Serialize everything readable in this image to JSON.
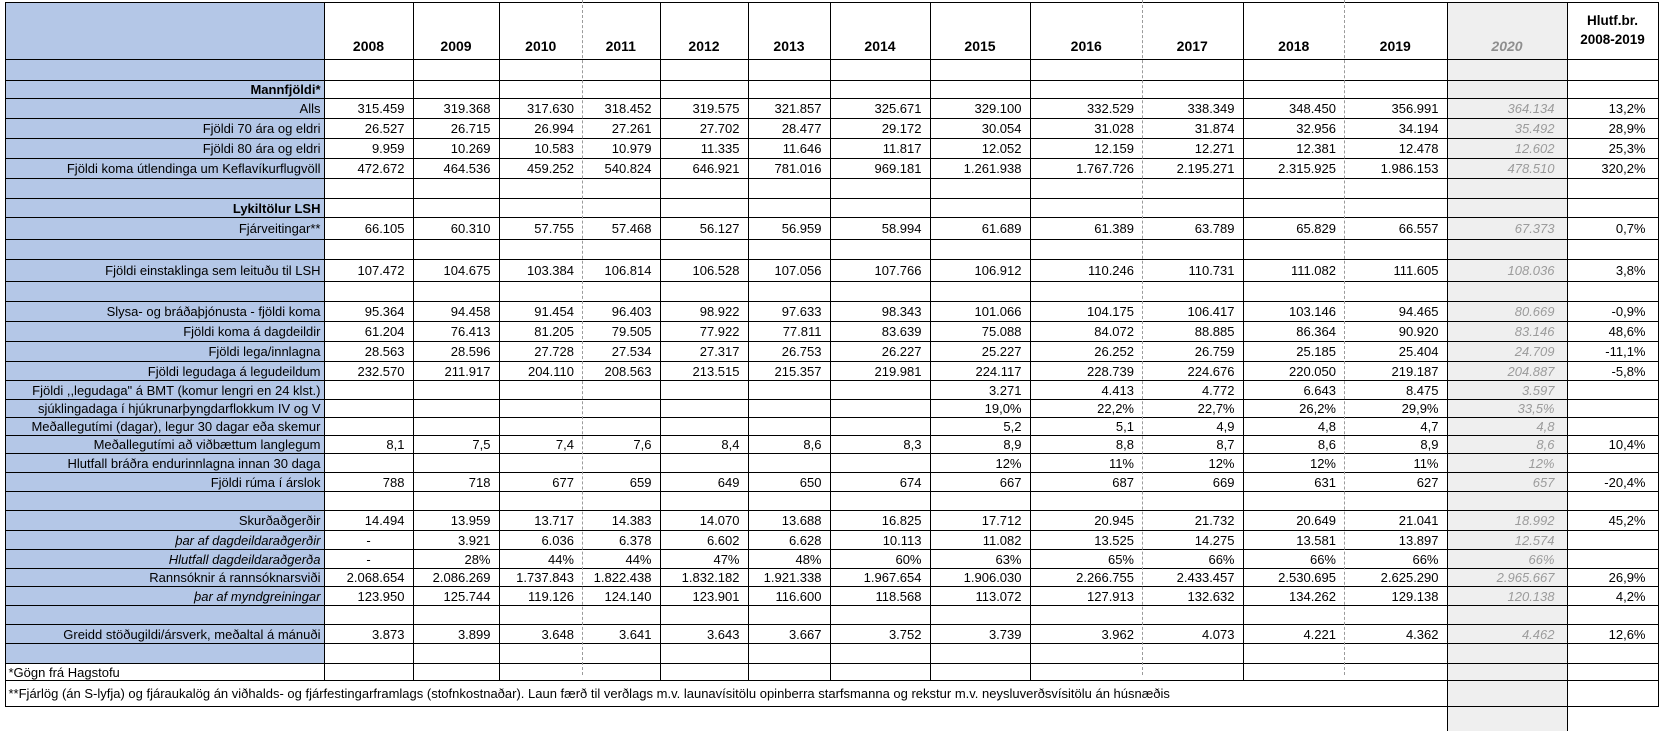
{
  "columns": {
    "years": [
      "2008",
      "2009",
      "2010",
      "2011",
      "2012",
      "2013",
      "2014",
      "2015",
      "2016",
      "2017",
      "2018",
      "2019"
    ],
    "year_2020": "2020",
    "hlutf_line1": "Hlutf.br.",
    "hlutf_line2": "2008-2019"
  },
  "rows": [
    {
      "kind": "blank",
      "name": "spacer-1"
    },
    {
      "kind": "section",
      "name": "mannfjoldi-section",
      "label": "Mannfjöldi*"
    },
    {
      "kind": "data",
      "name": "alls",
      "label": "Alls",
      "values": [
        "315.459",
        "319.368",
        "317.630",
        "318.452",
        "319.575",
        "321.857",
        "325.671",
        "329.100",
        "332.529",
        "338.349",
        "348.450",
        "356.991"
      ],
      "v2020": "364.134",
      "hlutf": "13,2%"
    },
    {
      "kind": "data",
      "name": "fjoldi-70-ara-og-eldri",
      "label": "Fjöldi 70 ára og eldri",
      "values": [
        "26.527",
        "26.715",
        "26.994",
        "27.261",
        "27.702",
        "28.477",
        "29.172",
        "30.054",
        "31.028",
        "31.874",
        "32.956",
        "34.194"
      ],
      "v2020": "35.492",
      "hlutf": "28,9%"
    },
    {
      "kind": "data",
      "name": "fjoldi-80-ara-og-eldri",
      "label": "Fjöldi 80 ára og eldri",
      "values": [
        "9.959",
        "10.269",
        "10.583",
        "10.979",
        "11.335",
        "11.646",
        "11.817",
        "12.052",
        "12.159",
        "12.271",
        "12.381",
        "12.478"
      ],
      "v2020": "12.602",
      "hlutf": "25,3%"
    },
    {
      "kind": "data",
      "name": "komur-utlendinga-keflavik",
      "label": "Fjöldi koma útlendinga  um  Keflavíkurflugvöll",
      "values": [
        "472.672",
        "464.536",
        "459.252",
        "540.824",
        "646.921",
        "781.016",
        "969.181",
        "1.261.938",
        "1.767.726",
        "2.195.271",
        "2.315.925",
        "1.986.153"
      ],
      "v2020": "478.510",
      "hlutf": "320,2%"
    },
    {
      "kind": "blank",
      "name": "spacer-2"
    },
    {
      "kind": "section",
      "name": "lykiltolur-section",
      "label": "Lykiltölur LSH"
    },
    {
      "kind": "data",
      "name": "fjarveitingar",
      "label": "Fjárveitingar**",
      "values": [
        "66.105",
        "60.310",
        "57.755",
        "57.468",
        "56.127",
        "56.959",
        "58.994",
        "61.689",
        "61.389",
        "63.789",
        "65.829",
        "66.557"
      ],
      "v2020": "67.373",
      "hlutf": "0,7%"
    },
    {
      "kind": "blank",
      "name": "spacer-3"
    },
    {
      "kind": "data",
      "name": "fjoldi-einstaklinga-leitudu",
      "label": "Fjöldi einstaklinga sem leituðu til LSH",
      "values": [
        "107.472",
        "104.675",
        "103.384",
        "106.814",
        "106.528",
        "107.056",
        "107.766",
        "106.912",
        "110.246",
        "110.731",
        "111.082",
        "111.605"
      ],
      "v2020": "108.036",
      "hlutf": "3,8%"
    },
    {
      "kind": "blank",
      "name": "spacer-4"
    },
    {
      "kind": "data",
      "name": "slysa-bradathjonusta-komur",
      "label": "Slysa- og bráðaþjónusta - fjöldi koma",
      "values": [
        "95.364",
        "94.458",
        "91.454",
        "96.403",
        "98.922",
        "97.633",
        "98.343",
        "101.066",
        "104.175",
        "106.417",
        "103.146",
        "94.465"
      ],
      "v2020": "80.669",
      "hlutf": "-0,9%"
    },
    {
      "kind": "data",
      "name": "fjoldi-koma-dagdeildir",
      "label": "Fjöldi koma á dagdeildir",
      "values": [
        "61.204",
        "76.413",
        "81.205",
        "79.505",
        "77.922",
        "77.811",
        "83.639",
        "75.088",
        "84.072",
        "88.885",
        "86.364",
        "90.920"
      ],
      "v2020": "83.146",
      "hlutf": "48,6%"
    },
    {
      "kind": "data",
      "name": "fjoldi-lega-innlagna",
      "label": "Fjöldi lega/innlagna",
      "values": [
        "28.563",
        "28.596",
        "27.728",
        "27.534",
        "27.317",
        "26.753",
        "26.227",
        "25.227",
        "26.252",
        "26.759",
        "25.185",
        "25.404"
      ],
      "v2020": "24.709",
      "hlutf": "-11,1%"
    },
    {
      "kind": "data",
      "name": "fjoldi-legudaga-legudeildum",
      "label": "Fjöldi legudaga á legudeildum",
      "values": [
        "232.570",
        "211.917",
        "204.110",
        "208.563",
        "213.515",
        "215.357",
        "219.981",
        "224.117",
        "228.739",
        "224.676",
        "220.050",
        "219.187"
      ],
      "v2020": "204.887",
      "hlutf": "-5,8%"
    },
    {
      "kind": "data",
      "name": "fjoldi-legudaga-bmt",
      "label": "Fjöldi ,,legudaga\" á BMT (komur lengri en 24 klst.)",
      "values": [
        "",
        "",
        "",
        "",
        "",
        "",
        "",
        "3.271",
        "4.413",
        "4.772",
        "6.643",
        "8.475"
      ],
      "v2020": "3.597",
      "hlutf": ""
    },
    {
      "kind": "data",
      "name": "sjuklingadagar-hjukrunarthyngd",
      "label": "sjúklingadaga í hjúkrunarþyngdarflokkum IV og V",
      "values": [
        "",
        "",
        "",
        "",
        "",
        "",
        "",
        "19,0%",
        "22,2%",
        "22,7%",
        "26,2%",
        "29,9%"
      ],
      "v2020": "33,5%",
      "hlutf": ""
    },
    {
      "kind": "data",
      "name": "medallegutimi-30-dagar",
      "label": "Meðallegutími (dagar), legur 30 dagar eða skemur",
      "values": [
        "",
        "",
        "",
        "",
        "",
        "",
        "",
        "5,2",
        "5,1",
        "4,9",
        "4,8",
        "4,7"
      ],
      "v2020": "4,8",
      "hlutf": ""
    },
    {
      "kind": "data",
      "name": "medallegutimi-vidbaettum-langlegum",
      "label": "Meðallegutími að viðbættum  langlegum",
      "values": [
        "8,1",
        "7,5",
        "7,4",
        "7,6",
        "8,4",
        "8,6",
        "8,3",
        "8,9",
        "8,8",
        "8,7",
        "8,6",
        "8,9"
      ],
      "v2020": "8,6",
      "hlutf": "10,4%"
    },
    {
      "kind": "data",
      "name": "hlutfall-bradra-endurinnlagna",
      "label": "Hlutfall  bráðra endurinnlagna innan 30 daga",
      "values": [
        "",
        "",
        "",
        "",
        "",
        "",
        "",
        "12%",
        "11%",
        "12%",
        "12%",
        "11%"
      ],
      "v2020": "12%",
      "hlutf": ""
    },
    {
      "kind": "data",
      "name": "fjoldi-ruma-arslok",
      "label": "Fjöldi rúma í árslok",
      "values": [
        "788",
        "718",
        "677",
        "659",
        "649",
        "650",
        "674",
        "667",
        "687",
        "669",
        "631",
        "627"
      ],
      "v2020": "657",
      "hlutf": "-20,4%"
    },
    {
      "kind": "blank",
      "name": "spacer-5"
    },
    {
      "kind": "data",
      "name": "skurdadgerdir",
      "label": "Skurðaðgerðir",
      "values": [
        "14.494",
        "13.959",
        "13.717",
        "14.383",
        "14.070",
        "13.688",
        "16.825",
        "17.712",
        "20.945",
        "21.732",
        "20.649",
        "21.041"
      ],
      "v2020": "18.992",
      "hlutf": "45,2%"
    },
    {
      "kind": "data",
      "name": "thar-af-dagdeildaradgerdir",
      "italic": true,
      "label": "þar af dagdeildaraðgerðir",
      "values": [
        "-",
        "3.921",
        "6.036",
        "6.378",
        "6.602",
        "6.628",
        "10.113",
        "11.082",
        "13.525",
        "14.275",
        "13.581",
        "13.897"
      ],
      "v2020": "12.574",
      "hlutf": ""
    },
    {
      "kind": "data",
      "name": "hlutfall-dagdeildaradgerda",
      "italic": true,
      "label": "Hlutfall dagdeildaraðgerða",
      "values": [
        "-",
        "28%",
        "44%",
        "44%",
        "47%",
        "48%",
        "60%",
        "63%",
        "65%",
        "66%",
        "66%",
        "66%"
      ],
      "v2020": "66%",
      "hlutf": ""
    },
    {
      "kind": "data",
      "name": "rannsoknir-rannsoknarsvidi",
      "label": "Rannsóknir á rannsóknarsviði",
      "values": [
        "2.068.654",
        "2.086.269",
        "1.737.843",
        "1.822.438",
        "1.832.182",
        "1.921.338",
        "1.967.654",
        "1.906.030",
        "2.266.755",
        "2.433.457",
        "2.530.695",
        "2.625.290"
      ],
      "v2020": "2.965.667",
      "hlutf": "26,9%"
    },
    {
      "kind": "data",
      "name": "thar-af-myndgreiningar",
      "italic": true,
      "label": "þar af myndgreiningar",
      "values": [
        "123.950",
        "125.744",
        "119.126",
        "124.140",
        "123.901",
        "116.600",
        "118.568",
        "113.072",
        "127.913",
        "132.632",
        "134.262",
        "129.138"
      ],
      "v2020": "120.138",
      "hlutf": "4,2%"
    },
    {
      "kind": "blank",
      "name": "spacer-6"
    },
    {
      "kind": "data",
      "name": "greidd-stodugildi-arsverk",
      "label": "Greidd stöðugildi/ársverk, meðaltal á mánuði",
      "values": [
        "3.873",
        "3.899",
        "3.648",
        "3.641",
        "3.643",
        "3.667",
        "3.752",
        "3.739",
        "3.962",
        "4.073",
        "4.221",
        "4.362"
      ],
      "v2020": "4.462",
      "hlutf": "12,6%"
    },
    {
      "kind": "blank",
      "name": "spacer-7"
    },
    {
      "kind": "footnote1",
      "name": "footnote-gogn"
    },
    {
      "kind": "footnote2",
      "name": "footnote-fjarlog"
    },
    {
      "kind": "strip",
      "name": "bottom-strip"
    }
  ],
  "footnotes": {
    "note1": "*Gögn frá Hagstofu",
    "note2": "**Fjárlög (án S-lyfja) og fjáraukalög án viðhalds- og fjárfestingarframlags (stofnkostnaðar). Laun færð til verðlags m.v. launavísitölu opinberra starfsmanna og rekstur m.v. neysluverðsvísitölu án húsnæðis"
  },
  "colors": {
    "label_bg": "#B4C7E7",
    "col2020_bg": "#EFEFEF",
    "col2020_text": "#9B9B9B",
    "grid": "#000000",
    "pagebreak": "#9B9B9B"
  }
}
